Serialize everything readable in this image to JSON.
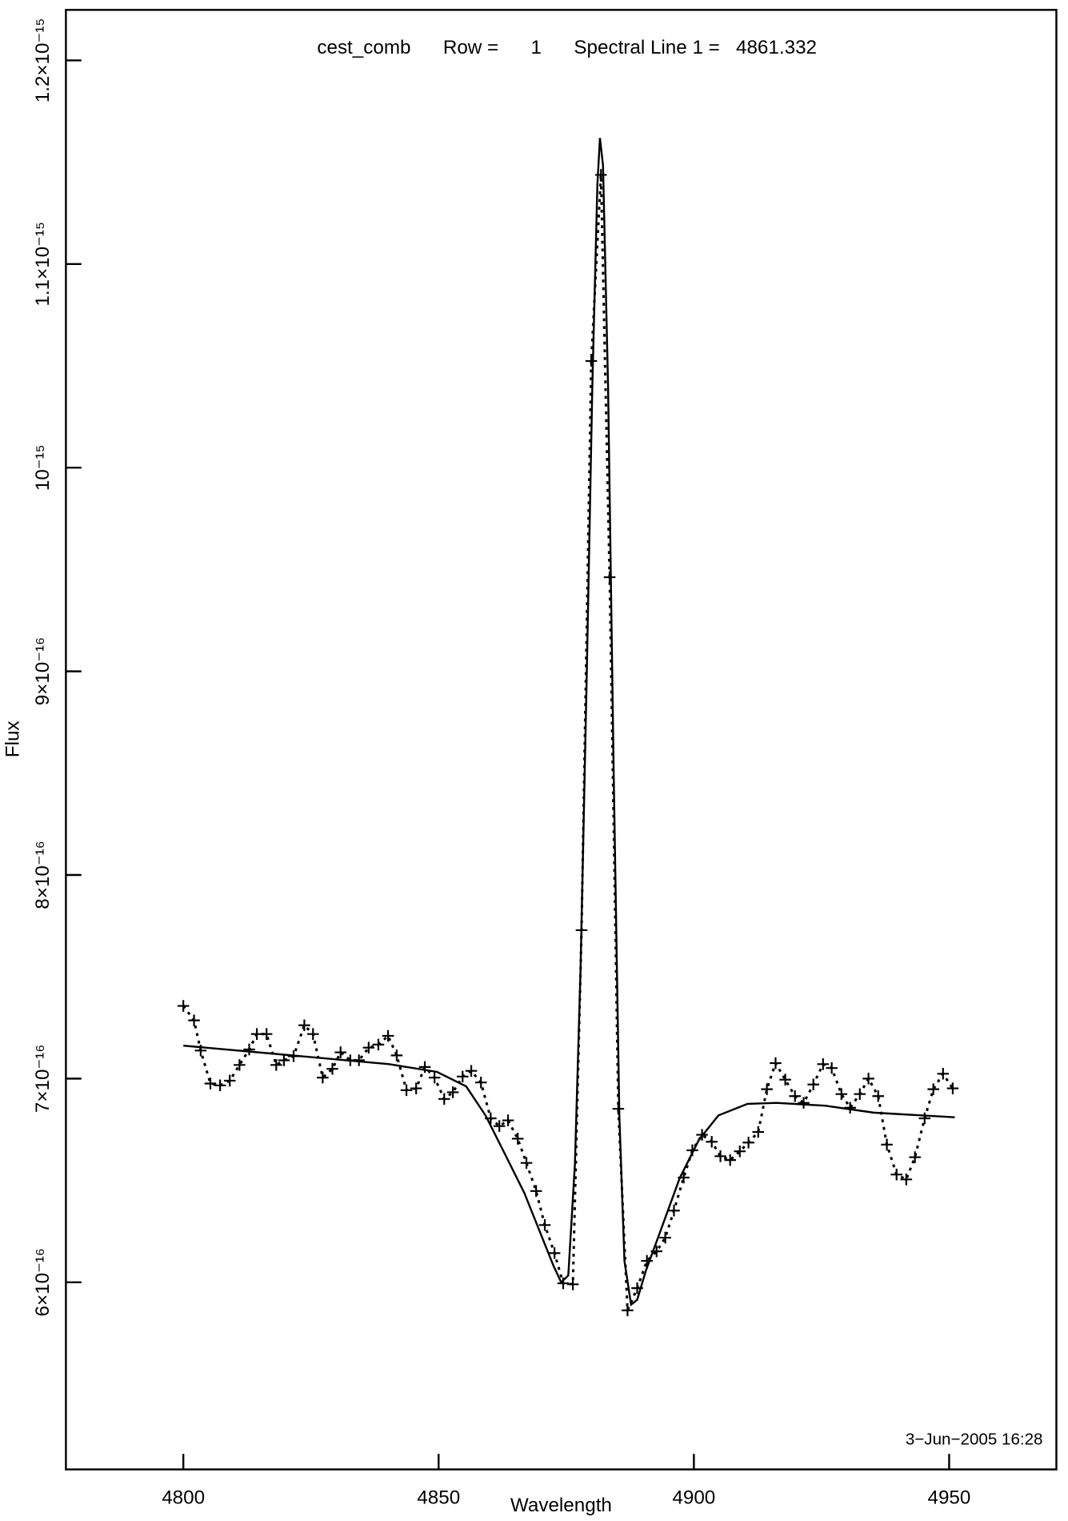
{
  "chart_data": {
    "type": "line",
    "title": "cest_comb      Row =      1      Spectral Line 1 =   4861.332",
    "annotation": "3−Jun−2005 16:28",
    "xlabel": "Wavelength",
    "ylabel": "Flux",
    "xlim": [
      4777,
      4971
    ],
    "xticks": [
      4800,
      4850,
      4900,
      4950
    ],
    "ylim": [
      5.081e-16,
      1.2248e-15
    ],
    "yticks": [
      {
        "value": 6e-16,
        "label": "6×10⁻¹⁶"
      },
      {
        "value": 7e-16,
        "label": "7×10⁻¹⁶"
      },
      {
        "value": 8e-16,
        "label": "8×10⁻¹⁶"
      },
      {
        "value": 9e-16,
        "label": "9×10⁻¹⁶"
      },
      {
        "value": 1e-15,
        "label": "10⁻¹⁵"
      },
      {
        "value": 1.1e-15,
        "label": "1.1×10⁻¹⁵"
      },
      {
        "value": 1.2e-15,
        "label": "1.2×10⁻¹⁵"
      }
    ],
    "series": [
      {
        "color": "#000000",
        "line_style": "dotted",
        "marker": "+",
        "x": [
          4800,
          4802.1,
          4803.4,
          4805.3,
          4807.2,
          4809.1,
          4811,
          4812.9,
          4814.4,
          4816.3,
          4818.2,
          4819.7,
          4821.6,
          4823.7,
          4825.4,
          4827.3,
          4829.2,
          4830.8,
          4832.7,
          4834.4,
          4836.3,
          4838.2,
          4840.1,
          4841.8,
          4843.7,
          4845.6,
          4847.3,
          4849.2,
          4851.1,
          4852.8,
          4854.7,
          4856.4,
          4858.3,
          4860.2,
          4861.9,
          4863.6,
          4865.5,
          4867.2,
          4869.1,
          4870.8,
          4872.7,
          4874.4,
          4876.3,
          4878,
          4879.9,
          4881.8,
          4883.5,
          4885.2,
          4887,
          4888.9,
          4890.8,
          4892.7,
          4894.4,
          4896.1,
          4898,
          4899.7,
          4901.6,
          4903.5,
          4905.2,
          4907.1,
          4909,
          4910.7,
          4912.6,
          4914.3,
          4916,
          4917.9,
          4919.8,
          4921.5,
          4923.4,
          4925.3,
          4927,
          4928.9,
          4930.6,
          4932.5,
          4934.2,
          4936.1,
          4937.8,
          4939.7,
          4941.6,
          4943.3,
          4945.2,
          4946.9,
          4948.8,
          4950.7
        ],
        "values": [
          7.357e-16,
          7.286e-16,
          7.138e-16,
          6.976e-16,
          6.967e-16,
          6.99e-16,
          7.067e-16,
          7.143e-16,
          7.219e-16,
          7.219e-16,
          7.067e-16,
          7.09e-16,
          7.11e-16,
          7.262e-16,
          7.219e-16,
          7.005e-16,
          7.048e-16,
          7.129e-16,
          7.09e-16,
          7.09e-16,
          7.152e-16,
          7.167e-16,
          7.21e-16,
          7.114e-16,
          6.943e-16,
          6.952e-16,
          7.057e-16,
          7.005e-16,
          6.9e-16,
          6.933e-16,
          7.01e-16,
          7.038e-16,
          6.981e-16,
          6.805e-16,
          6.767e-16,
          6.795e-16,
          6.705e-16,
          6.586e-16,
          6.448e-16,
          6.281e-16,
          6.143e-16,
          5.995e-16,
          5.99e-16,
          7.729e-16,
          1.0524e-15,
          1.1438e-15,
          9.462e-16,
          6.852e-16,
          5.862e-16,
          5.971e-16,
          6.105e-16,
          6.152e-16,
          6.219e-16,
          6.352e-16,
          6.514e-16,
          6.648e-16,
          6.724e-16,
          6.69e-16,
          6.619e-16,
          6.6e-16,
          6.643e-16,
          6.686e-16,
          6.738e-16,
          6.948e-16,
          7.076e-16,
          6.995e-16,
          6.914e-16,
          6.881e-16,
          6.971e-16,
          7.071e-16,
          7.052e-16,
          6.924e-16,
          6.857e-16,
          6.924e-16,
          7e-16,
          6.914e-16,
          6.676e-16,
          6.529e-16,
          6.505e-16,
          6.614e-16,
          6.805e-16,
          6.948e-16,
          7.024e-16,
          6.952e-16
        ]
      },
      {
        "color": "#000000",
        "line_style": "solid",
        "x": [
          4800,
          4821.3,
          4840.3,
          4849.7,
          4855.4,
          4859.2,
          4863,
          4866.8,
          4870.6,
          4872.5,
          4874,
          4875.4,
          4876.7,
          4877.8,
          4879,
          4880.1,
          4881.1,
          4881.6,
          4882.2,
          4883.2,
          4884.3,
          4885.4,
          4886.4,
          4887.7,
          4888.9,
          4890.6,
          4893.4,
          4897.2,
          4901,
          4904.8,
          4910.5,
          4916.2,
          4925.7,
          4935.2,
          4951.1
        ],
        "values": [
          7.162e-16,
          7.114e-16,
          7.071e-16,
          7.033e-16,
          6.962e-16,
          6.819e-16,
          6.629e-16,
          6.438e-16,
          6.2e-16,
          6.081e-16,
          6e-16,
          6.033e-16,
          6.581e-16,
          7.533e-16,
          8.962e-16,
          1.039e-15,
          1.139e-15,
          1.1619e-15,
          1.1486e-15,
          1.039e-15,
          8.486e-16,
          6.819e-16,
          6.105e-16,
          5.89e-16,
          5.914e-16,
          6.057e-16,
          6.248e-16,
          6.51e-16,
          6.7e-16,
          6.819e-16,
          6.876e-16,
          6.881e-16,
          6.867e-16,
          6.833e-16,
          6.81e-16
        ]
      }
    ]
  }
}
